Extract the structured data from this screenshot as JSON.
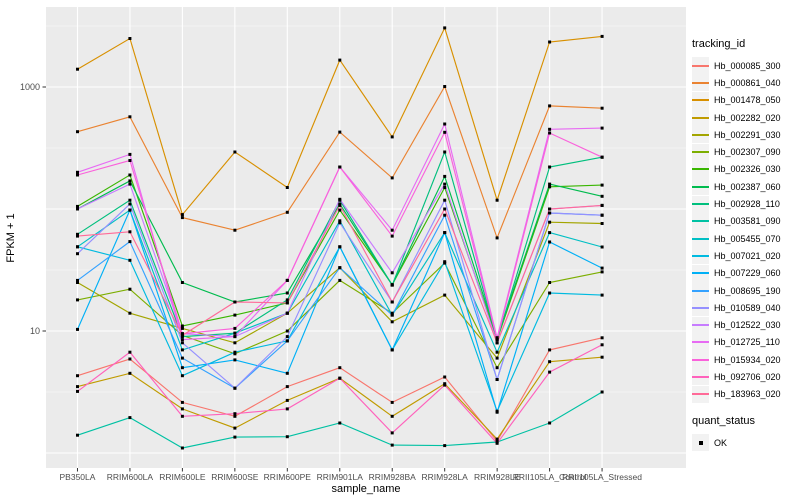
{
  "figure": {
    "y_axis": {
      "label": "FPKM + 1",
      "tick_labels": [
        "1000",
        "10"
      ],
      "tick_values": [
        1000,
        10
      ]
    },
    "x_axis": {
      "label": "sample_name"
    },
    "legend": {
      "title": "tracking_id"
    },
    "quant_status": {
      "title": "quant_status",
      "ok_label": "OK"
    },
    "colors": {
      "panel_bg": "#EBEBEB",
      "grid": "#FFFFFF",
      "point": "#000000",
      "tick_text": "#4D4D4D",
      "tick_mark": "#333333",
      "key_bg": "#F2F2F2"
    }
  },
  "chart_data": {
    "type": "line",
    "title": "",
    "xlabel": "sample_name",
    "ylabel": "FPKM + 1",
    "y_scale": "log10",
    "ylim": [
      0.75,
      4500
    ],
    "y_tick_values": [
      10,
      1000
    ],
    "y_gridlines_major": [
      1,
      10,
      100,
      1000
    ],
    "y_gridlines_minor": [
      3.162,
      31.62,
      316.2,
      3162
    ],
    "grid": true,
    "legend_position": "right",
    "point_marker": "black-square",
    "categories": [
      "PB350LA",
      "RRIM600LA",
      "RRIM600LE",
      "RRIM600SE",
      "RRIM600PE",
      "RRIM901LA",
      "RRIM928BA",
      "RRIM928LA",
      "RRIM928LE",
      "RRII105LA_Control",
      "RRII105LA_Stressed"
    ],
    "series": [
      {
        "name": "Hb_000085_300",
        "color": "#F8766D",
        "values": [
          4.3,
          5.9,
          2.6,
          2.0,
          3.5,
          5.0,
          2.6,
          4.2,
          1.25,
          7.0,
          8.8
        ]
      },
      {
        "name": "Hb_000861_040",
        "color": "#EA8331",
        "values": [
          430,
          570,
          85,
          67,
          94,
          427,
          180,
          1010,
          58,
          700,
          670
        ]
      },
      {
        "name": "Hb_001478_050",
        "color": "#D89000",
        "values": [
          1400,
          2500,
          90,
          293,
          150,
          1660,
          390,
          3050,
          118,
          2340,
          2600
        ]
      },
      {
        "name": "Hb_002282_020",
        "color": "#C09B00",
        "values": [
          3.5,
          4.5,
          2.3,
          1.6,
          2.7,
          4.1,
          2.0,
          3.7,
          1.3,
          5.6,
          6.1
        ]
      },
      {
        "name": "Hb_002291_030",
        "color": "#A3A500",
        "values": [
          25,
          14,
          10.5,
          8.0,
          14,
          33,
          11.9,
          19.7,
          6.0,
          78,
          76
        ]
      },
      {
        "name": "Hb_002307_090",
        "color": "#7CAE00",
        "values": [
          18,
          22,
          9.2,
          6.5,
          10,
          26,
          14,
          36,
          5.0,
          25,
          30.5
        ]
      },
      {
        "name": "Hb_002326_030",
        "color": "#39B600",
        "values": [
          105,
          190,
          11,
          13.5,
          17,
          98,
          24,
          150,
          8.5,
          152,
          157
        ]
      },
      {
        "name": "Hb_002387_060",
        "color": "#00BB4E",
        "values": [
          100,
          170,
          25,
          17.3,
          20.5,
          110,
          23.8,
          185,
          8.8,
          160,
          127
        ]
      },
      {
        "name": "Hb_002928_110",
        "color": "#00BF7D",
        "values": [
          62,
          118,
          9.0,
          9.6,
          18,
          118,
          23.8,
          293,
          8.5,
          221,
          266
        ]
      },
      {
        "name": "Hb_003581_090",
        "color": "#00C1A3",
        "values": [
          1.4,
          1.95,
          1.1,
          1.35,
          1.36,
          1.76,
          1.16,
          1.15,
          1.23,
          1.76,
          3.16
        ]
      },
      {
        "name": "Hb_005455_070",
        "color": "#00BFC4",
        "values": [
          49,
          98,
          7.0,
          9.6,
          14,
          80,
          13.5,
          64,
          6.7,
          64,
          48.8
        ]
      },
      {
        "name": "Hb_007021_020",
        "color": "#00BAE0",
        "values": [
          49,
          38,
          4.3,
          6.7,
          8.3,
          49,
          7.0,
          37,
          2.2,
          20.5,
          19.7
        ]
      },
      {
        "name": "Hb_007229_060",
        "color": "#00B0F6",
        "values": [
          10.3,
          98,
          5.0,
          5.8,
          4.5,
          49,
          7.0,
          64,
          2.16,
          53.6,
          32.8
        ]
      },
      {
        "name": "Hb_008695_190",
        "color": "#35A2FF",
        "values": [
          26,
          54,
          6.0,
          3.4,
          8.3,
          33,
          13.5,
          89,
          4.0,
          92.8,
          89
        ]
      },
      {
        "name": "Hb_010589_040",
        "color": "#9590FF",
        "values": [
          43,
          110,
          8.0,
          3.4,
          9.0,
          77,
          17.3,
          118,
          4.0,
          92.8,
          89
        ]
      },
      {
        "name": "Hb_012522_030",
        "color": "#C77CFF",
        "values": [
          100,
          160,
          9.5,
          9.0,
          14,
          120,
          30,
          160,
          8.0,
          100,
          107
        ]
      },
      {
        "name": "Hb_012725_110",
        "color": "#E76BF3",
        "values": [
          200,
          280,
          8.5,
          9.0,
          26,
          221,
          67,
          497,
          8.8,
          450,
          460
        ]
      },
      {
        "name": "Hb_015934_020",
        "color": "#FA62DB",
        "values": [
          190,
          250,
          9.5,
          10.5,
          26,
          221,
          60,
          425,
          8.5,
          420,
          266
        ]
      },
      {
        "name": "Hb_092706_020",
        "color": "#FF62BC",
        "values": [
          3.2,
          6.7,
          2.0,
          2.1,
          2.3,
          4.1,
          1.46,
          3.6,
          1.2,
          4.6,
          7.7
        ]
      },
      {
        "name": "Hb_183963_020",
        "color": "#FF6A98",
        "values": [
          60,
          65,
          9.2,
          17.3,
          17,
          107,
          17.3,
          100,
          8.0,
          100,
          107
        ]
      }
    ]
  }
}
